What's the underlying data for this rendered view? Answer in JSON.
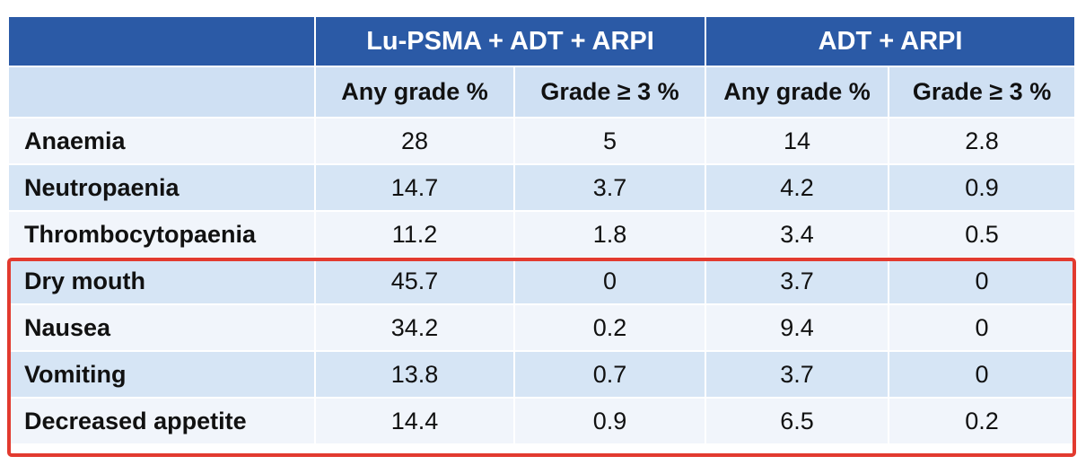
{
  "table": {
    "group_headers": [
      "",
      "Lu-PSMA + ADT + ARPI",
      "ADT + ARPI"
    ],
    "sub_headers": [
      "",
      "Any grade %",
      "Grade ≥ 3 %",
      "Any grade %",
      "Grade ≥ 3 %"
    ],
    "rows": [
      {
        "label": "Anaemia",
        "values": [
          "28",
          "5",
          "14",
          "2.8"
        ]
      },
      {
        "label": "Neutropaenia",
        "values": [
          "14.7",
          "3.7",
          "4.2",
          "0.9"
        ]
      },
      {
        "label": "Thrombocytopaenia",
        "values": [
          "11.2",
          "1.8",
          "3.4",
          "0.5"
        ]
      },
      {
        "label": "Dry mouth",
        "values": [
          "45.7",
          "0",
          "3.7",
          "0"
        ]
      },
      {
        "label": "Nausea",
        "values": [
          "34.2",
          "0.2",
          "9.4",
          "0"
        ]
      },
      {
        "label": "Vomiting",
        "values": [
          "13.8",
          "0.7",
          "3.7",
          "0"
        ]
      },
      {
        "label": "Decreased appetite",
        "values": [
          "14.4",
          "0.9",
          "6.5",
          "0.2"
        ]
      }
    ]
  },
  "highlight": {
    "color": "#e23a2f",
    "rows": [
      "Dry mouth",
      "Nausea",
      "Vomiting",
      "Decreased appetite"
    ]
  },
  "colors": {
    "header_blue": "#2b5aa6",
    "subheader_blue": "#cfe0f3",
    "row_light": "#f1f5fb",
    "row_blue": "#d6e5f5"
  }
}
